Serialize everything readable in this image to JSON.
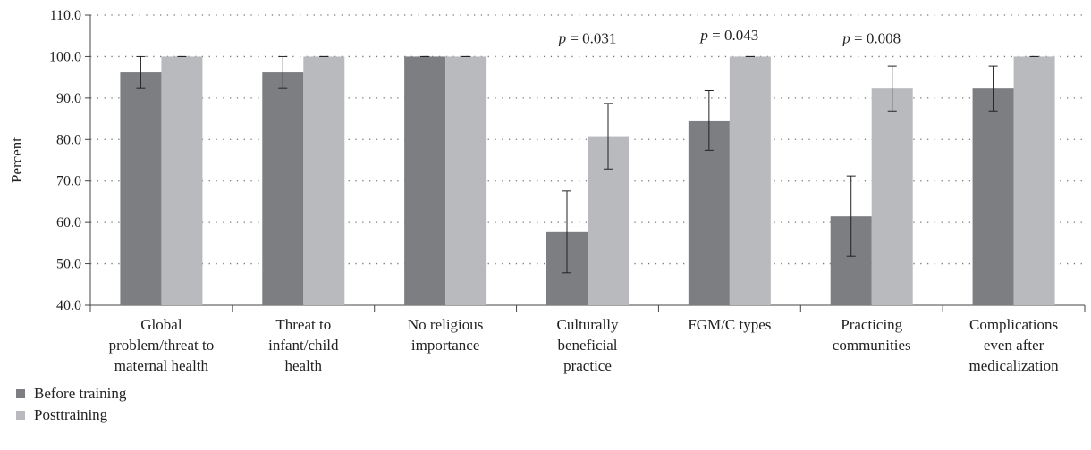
{
  "chart_data": {
    "type": "bar",
    "ylabel": "Percent",
    "ylim": [
      40,
      110
    ],
    "yticks": [
      "40.0",
      "50.0",
      "60.0",
      "70.0",
      "80.0",
      "90.0",
      "100.0",
      "110.0"
    ],
    "grid": true,
    "legend_placement": "bottom-left",
    "categories": [
      [
        "Global",
        "problem/threat to",
        "maternal health"
      ],
      [
        "Threat to",
        "infant/child",
        "health"
      ],
      [
        "No religious",
        "importance"
      ],
      [
        "Culturally",
        "beneficial",
        "practice"
      ],
      [
        "FGM/C types"
      ],
      [
        "Practicing",
        "communities"
      ],
      [
        "Complications",
        "even after",
        "medicalization"
      ]
    ],
    "series": [
      {
        "name": "Before training",
        "color": "#7d7e82",
        "values": [
          96.2,
          96.2,
          100.0,
          57.7,
          84.6,
          61.5,
          92.3
        ],
        "error_low": [
          92.3,
          92.3,
          100.0,
          47.8,
          77.4,
          51.8,
          86.9
        ],
        "error_high": [
          100.0,
          100.0,
          100.0,
          67.6,
          91.8,
          71.2,
          97.7
        ]
      },
      {
        "name": "Posttraining",
        "color": "#b9babd",
        "values": [
          100.0,
          100.0,
          100.0,
          80.8,
          100.0,
          92.3,
          100.0
        ],
        "error_low": [
          100.0,
          100.0,
          100.0,
          72.9,
          100.0,
          86.9,
          100.0
        ],
        "error_high": [
          100.0,
          100.0,
          100.0,
          88.7,
          100.0,
          97.7,
          100.0
        ]
      }
    ],
    "annotations": [
      {
        "category_index": 3,
        "label": "p = 0.031",
        "y": 103.2
      },
      {
        "category_index": 4,
        "label": "p = 0.043",
        "y": 104.0
      },
      {
        "category_index": 5,
        "label": "p = 0.008",
        "y": 103.2
      }
    ]
  }
}
